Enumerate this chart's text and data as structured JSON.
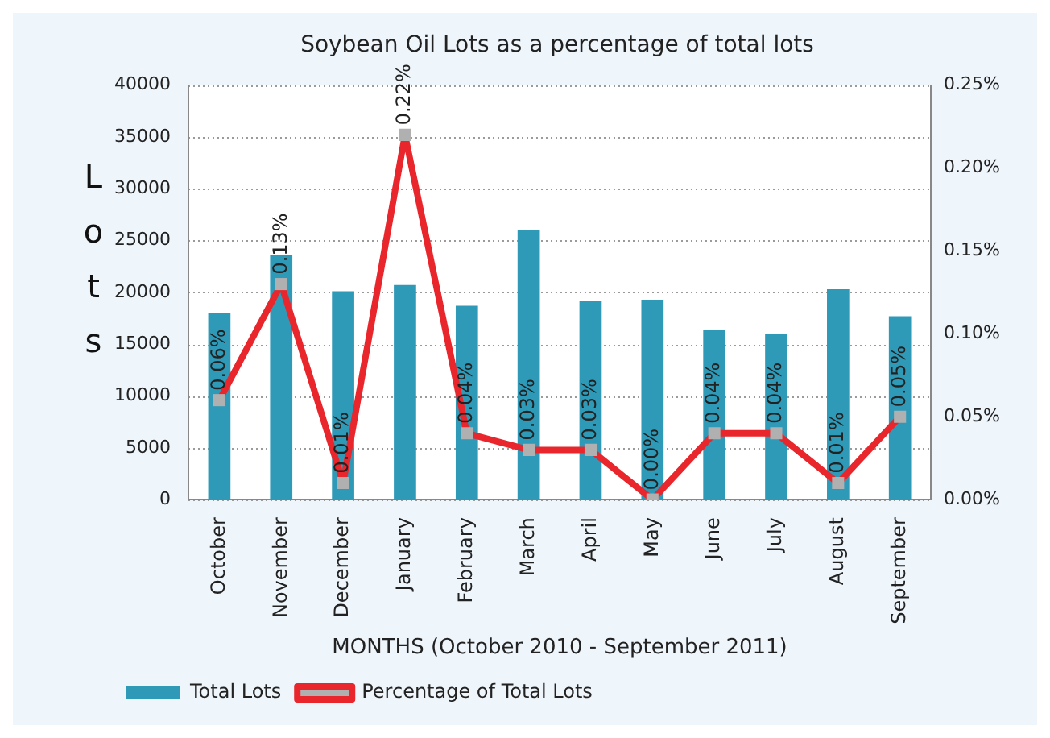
{
  "chart_data": {
    "type": "bar",
    "title": "Soybean Oil Lots as a percentage of total lots",
    "xlabel": "MONTHS (October 2010 - September 2011)",
    "ylabel": "Lots",
    "categories": [
      "October",
      "November",
      "December",
      "January",
      "February",
      "March",
      "April",
      "May",
      "June",
      "July",
      "August",
      "September"
    ],
    "series": [
      {
        "name": "Total Lots",
        "color": "#2e9ab8",
        "values": [
          18000,
          23600,
          20100,
          20700,
          18700,
          26000,
          19200,
          19300,
          16400,
          16000,
          20300,
          17700
        ]
      },
      {
        "name": "Percentage of Total Lots",
        "type": "line",
        "axis": "y2",
        "color": "#e8262b",
        "marker": "square",
        "values": [
          0.06,
          0.13,
          0.01,
          0.22,
          0.04,
          0.03,
          0.03,
          0.0,
          0.04,
          0.04,
          0.01,
          0.05
        ],
        "value_labels": [
          "0.06%",
          "0.13%",
          "0.01%",
          "0.22%",
          "0.04%",
          "0.03%",
          "0.03%",
          "0.00%",
          "0.04%",
          "0.04%",
          "0.01%",
          "0.05%"
        ]
      }
    ],
    "ylim": [
      0,
      40000
    ],
    "yticks": [
      0,
      5000,
      10000,
      15000,
      20000,
      25000,
      30000,
      35000,
      40000
    ],
    "y2lim": [
      0,
      0.25
    ],
    "y2ticks": [
      {
        "value": 0,
        "label": "0.00%"
      },
      {
        "value": 0.05,
        "label": "0.05%"
      },
      {
        "value": 0.1,
        "label": "0.10%"
      },
      {
        "value": 0.15,
        "label": "0.15%"
      },
      {
        "value": 0.2,
        "label": "0.20%"
      },
      {
        "value": 0.25,
        "label": "0.25%"
      }
    ],
    "grid": "y",
    "legend": "bottom left"
  }
}
